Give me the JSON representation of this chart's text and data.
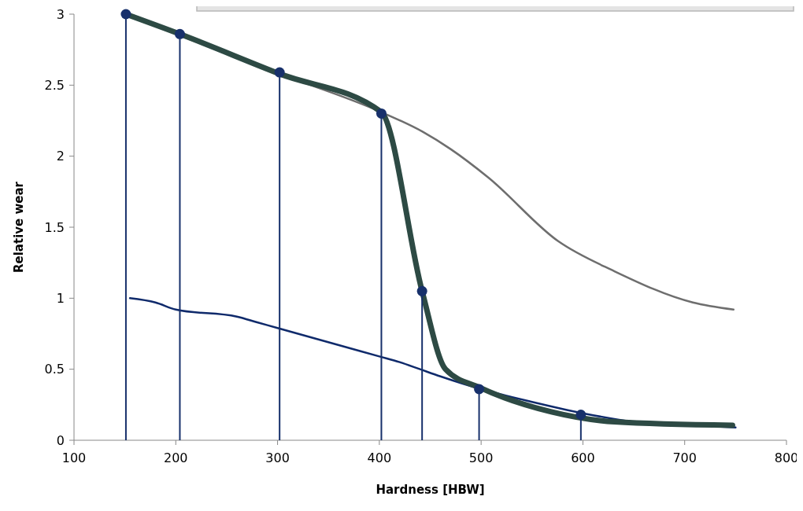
{
  "chart_data": {
    "type": "line",
    "xlabel": "Hardness [HBW]",
    "ylabel": "Relative wear",
    "xlim": [
      100,
      800
    ],
    "xticks": [
      100,
      200,
      300,
      400,
      500,
      600,
      700,
      800
    ],
    "ylim": [
      0,
      3
    ],
    "yticks": [
      0,
      0.5,
      1,
      1.5,
      2,
      2.5,
      3
    ],
    "line_style": "solid",
    "series": [
      {
        "color": "#6e6e6e",
        "x": [
          151,
          204,
          302,
          402,
          443,
          470,
          507,
          576,
          631,
          708,
          748
        ],
        "values": [
          3.0,
          2.85,
          2.58,
          2.31,
          2.17,
          2.05,
          1.85,
          1.4,
          1.19,
          0.97,
          0.92
        ]
      },
      {
        "color": "#0f2a6b",
        "x": [
          155,
          180,
          200,
          260,
          280,
          300,
          400,
          420,
          440,
          460,
          500,
          550,
          600,
          650,
          700,
          750
        ],
        "values": [
          1.0,
          0.97,
          0.92,
          0.87,
          0.83,
          0.79,
          0.59,
          0.55,
          0.5,
          0.45,
          0.36,
          0.27,
          0.19,
          0.13,
          0.11,
          0.09
        ]
      },
      {
        "color": "#2d4a44",
        "x": [
          151,
          204,
          302,
          402,
          442,
          465,
          499,
          569,
          631,
          747
        ],
        "values": [
          3.0,
          2.86,
          2.58,
          2.31,
          1.05,
          0.5,
          0.37,
          0.2,
          0.13,
          0.105
        ]
      },
      {
        "type": "lollipop",
        "color": "#17306b",
        "x": [
          151,
          204,
          302,
          402,
          442,
          498,
          598
        ],
        "values": [
          3.0,
          2.86,
          2.59,
          2.3,
          1.05,
          0.36,
          0.18
        ]
      }
    ]
  }
}
